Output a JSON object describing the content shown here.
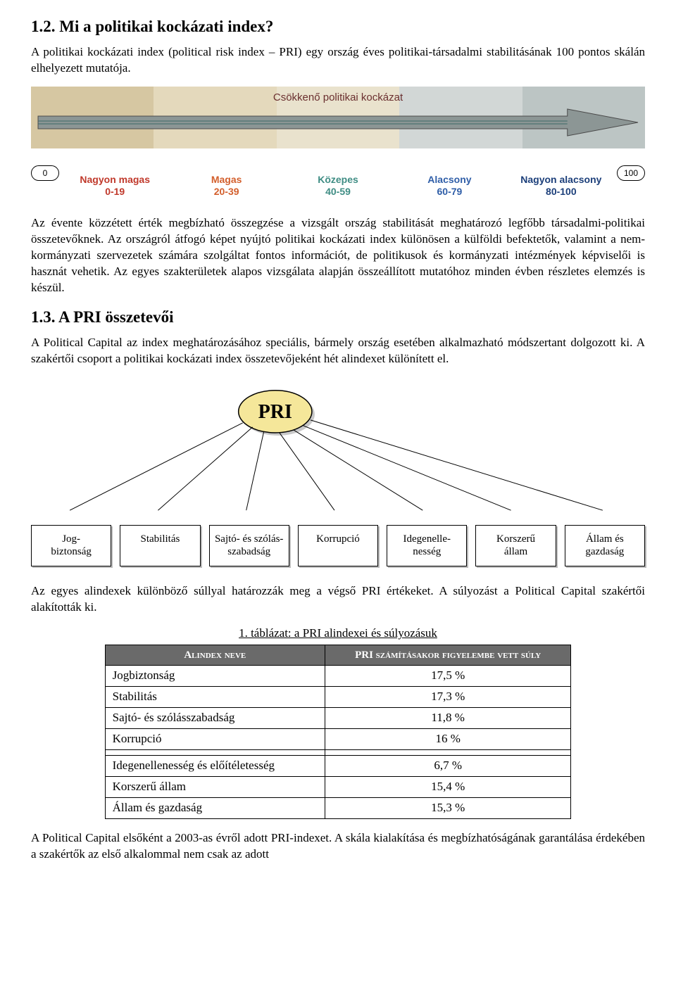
{
  "sec12": {
    "heading": "1.2. Mi a politikai kockázati index?",
    "intro": "A politikai kockázati index (political risk index – PRI) egy ország éves politikai-társadalmi stabilitásának 100 pontos skálán elhelyezett mutatója."
  },
  "scale": {
    "title": "Csökkenő politikai kockázat",
    "title_color": "#6a2f2f",
    "title_fontsize": 15,
    "min": 0,
    "max": 100,
    "arrow_fill": "#8c9695",
    "arrow_stroke": "#4b4b4b",
    "segments": [
      {
        "label_top": "Nagyon magas",
        "range": "0-19",
        "color_class": "c-red",
        "bg": "#d6c7a2"
      },
      {
        "label_top": "Magas",
        "range": "20-39",
        "color_class": "c-ored",
        "bg": "#e4d9bc"
      },
      {
        "label_top": "Közepes",
        "range": "40-59",
        "color_class": "c-teal",
        "bg": "#e9e2cd"
      },
      {
        "label_top": "Alacsony",
        "range": "60-79",
        "color_class": "c-blue",
        "bg": "#d2d7d6"
      },
      {
        "label_top": "Nagyon alacsony",
        "range": "80-100",
        "color_class": "c-dblue",
        "bg": "#bcc5c4"
      }
    ],
    "endcap_left": "0",
    "endcap_right": "100"
  },
  "para_after_scale": "Az évente közzétett érték megbízható összegzése a vizsgált ország stabilitását meghatározó legfőbb társadalmi-politikai összetevőknek. Az országról átfogó képet nyújtó politikai kockázati index különösen a külföldi befektetők, valamint a nem-kormányzati szervezetek számára szolgáltat fontos információt, de politikusok és kormányzati intézmények képviselői is hasznát vehetik. Az egyes szakterületek alapos vizsgálata alapján összeállított mutatóhoz minden évben részletes elemzés is készül.",
  "sec13": {
    "heading": "1.3. A PRI összetevői",
    "intro": "A Political Capital az index meghatározásához speciális, bármely ország esetében alkalmazható módszertant dolgozott ki. A szakértői csoport a politikai kockázati index összetevőjeként hét alindexet különített el."
  },
  "tree": {
    "root": "PRI",
    "root_fill": "#f5e79a",
    "root_stroke": "#000000",
    "edge_stroke": "#000000",
    "leaves": [
      "Jog-\nbiztonság",
      "Stabilitás",
      "Sajtó- és szólás-\nszabadság",
      "Korrupció",
      "Idegenelle-\nnesség",
      "Korszerű\nállam",
      "Állam és\ngazdaság"
    ]
  },
  "para_after_tree": "Az egyes alindexek különböző súllyal határozzák meg a végső PRI értékeket. A súlyozást a Political Capital szakértői alakították ki.",
  "table": {
    "caption": "1. táblázat: a PRI alindexei és súlyozásuk",
    "header_bg": "#6a6a6a",
    "header_fg": "#ffffff",
    "col1": "Alindex neve",
    "col2": "PRI számításakor figyelembe vett súly",
    "rows_a": [
      {
        "name": "Jogbiztonság",
        "weight": "17,5 %"
      },
      {
        "name": "Stabilitás",
        "weight": "17,3 %"
      },
      {
        "name": "Sajtó- és szólásszabadság",
        "weight": "11,8 %"
      },
      {
        "name": "Korrupció",
        "weight": "16 %"
      }
    ],
    "rows_b": [
      {
        "name": "Idegenellenesség és előítéletesség",
        "weight": "6,7 %"
      },
      {
        "name": "Korszerű állam",
        "weight": "15,4 %"
      },
      {
        "name": "Állam és gazdaság",
        "weight": "15,3 %"
      }
    ]
  },
  "closing": "A Political Capital elsőként a 2003-as évről adott PRI-indexet. A skála kialakítása és megbízhatóságának garantálása érdekében a szakértők az első alkalommal nem csak az adott"
}
